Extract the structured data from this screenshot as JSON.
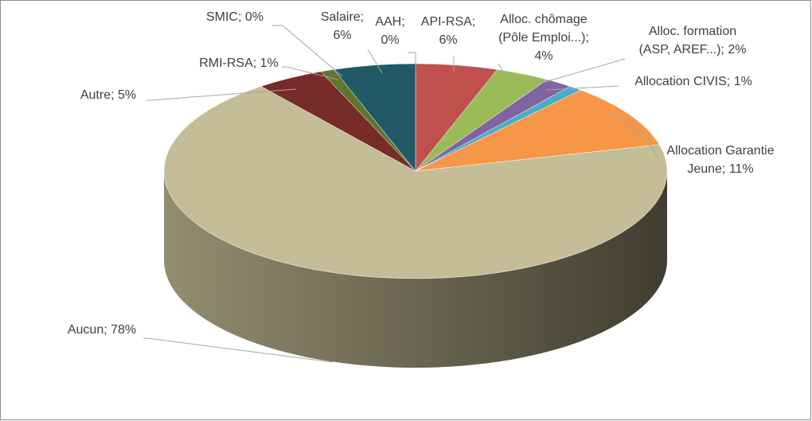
{
  "chart_data": {
    "type": "pie3d",
    "categories": [
      "AAH",
      "API-RSA",
      "Alloc. chômage (Pôle Emploi...)",
      "Alloc. formation (ASP, AREF...)",
      "Allocation CIVIS",
      "Allocation Garantie Jeune",
      "Aucun",
      "Autre",
      "RMI-RSA",
      "SMIC",
      "Salaire"
    ],
    "values": [
      0,
      6,
      4,
      2,
      1,
      11,
      78,
      5,
      1,
      0,
      6
    ],
    "value_labels": [
      "0%",
      "6%",
      "4%",
      "2%",
      "1%",
      "11%",
      "78%",
      "5%",
      "1%",
      "0%",
      "6%"
    ],
    "label_separator": "; ",
    "colors": [
      "#4f81bd",
      "#c0504d",
      "#9bbb59",
      "#8064a2",
      "#4bacc6",
      "#f79646",
      "#c4bd97",
      "#772c2a",
      "#5f7530",
      "#4d3b62",
      "#215967"
    ]
  }
}
